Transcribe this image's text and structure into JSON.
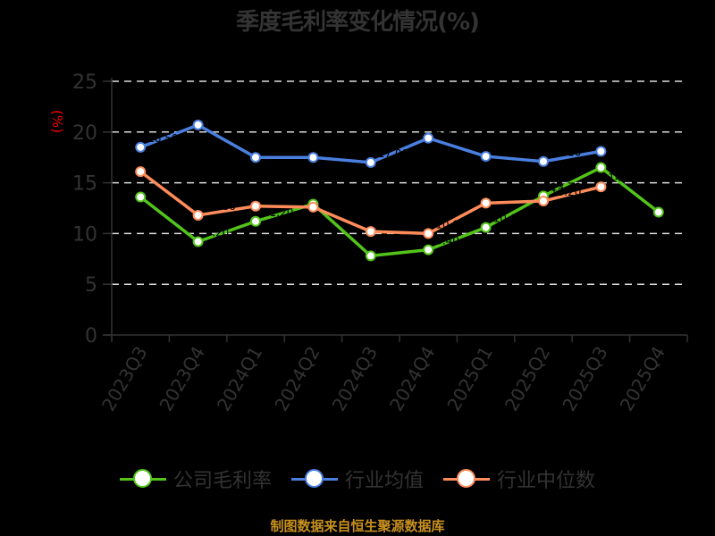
{
  "title": "季度毛利率变化情况(%)",
  "y_unit_label": "(%)",
  "legend": [
    {
      "label": "公司毛利率",
      "color": "#52c41a"
    },
    {
      "label": "行业均值",
      "color": "#4a7fe0"
    },
    {
      "label": "行业中位数",
      "color": "#ff8c5a"
    }
  ],
  "footer": "制图数据来自恒生聚源数据库",
  "colors": {
    "background": "#000000",
    "axis": "#333333",
    "grid": "#dddddd",
    "unit_label": "#ff0000",
    "footer": "#c8901e"
  },
  "chart_data": {
    "type": "line",
    "title": "季度毛利率变化情况(%)",
    "xlabel": "",
    "ylabel": "(%)",
    "categories": [
      "2023Q3",
      "2023Q4",
      "2024Q1",
      "2024Q2",
      "2024Q3",
      "2024Q4",
      "2025Q1",
      "2025Q2",
      "2025Q3",
      "2025Q4"
    ],
    "ylim": [
      0,
      25
    ],
    "yticks": [
      0,
      5,
      10,
      15,
      20,
      25
    ],
    "grid": true,
    "legend_position": "bottom",
    "series": [
      {
        "name": "公司毛利率",
        "color": "#52c41a",
        "values": [
          13.6,
          9.2,
          11.2,
          12.9,
          7.8,
          8.4,
          10.6,
          13.7,
          16.5,
          12.1
        ]
      },
      {
        "name": "行业均值",
        "color": "#4a7fe0",
        "values": [
          18.5,
          20.7,
          17.5,
          17.5,
          17.0,
          19.4,
          17.6,
          17.1,
          18.1,
          null
        ]
      },
      {
        "name": "行业中位数",
        "color": "#ff8c5a",
        "values": [
          16.1,
          11.8,
          12.7,
          12.6,
          10.2,
          10.0,
          13.0,
          13.2,
          14.6,
          null
        ]
      }
    ]
  }
}
